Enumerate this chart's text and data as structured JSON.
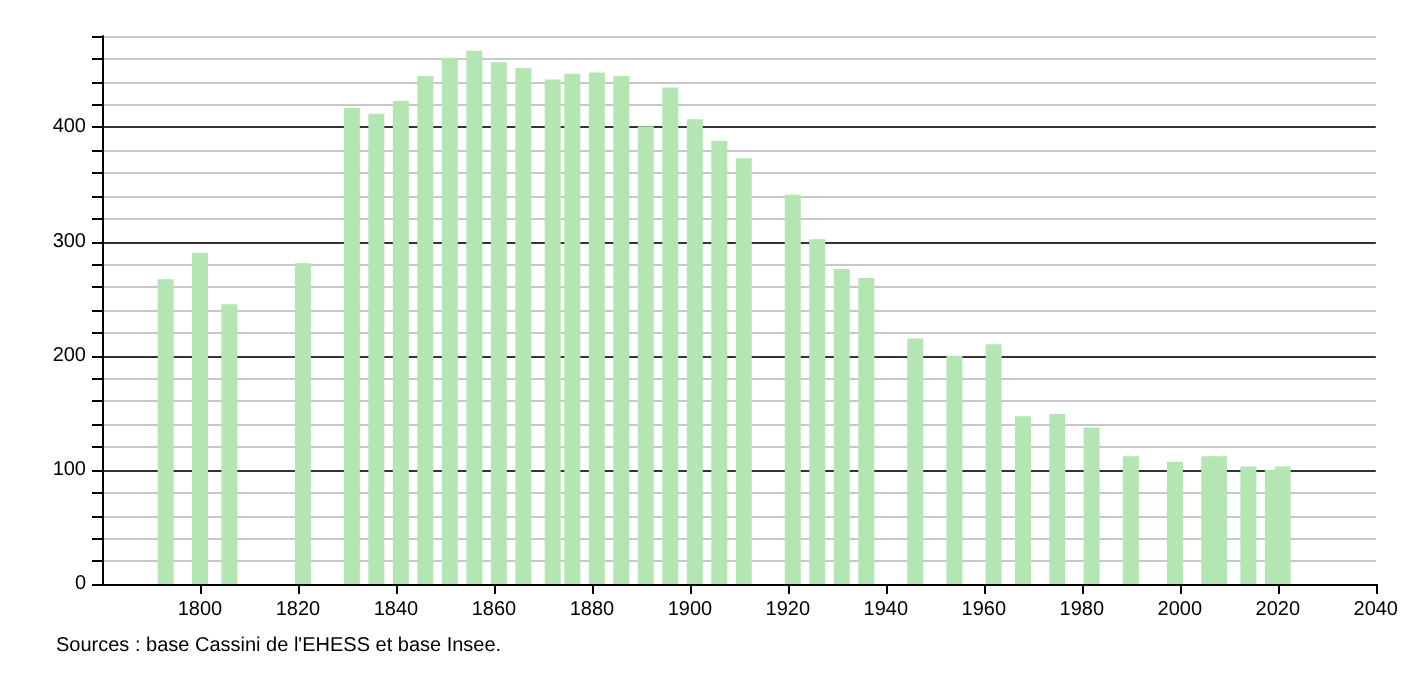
{
  "chart_data": {
    "type": "bar",
    "annotations": [
      "Sources : base Cassini de l'EHESS et base Insee."
    ],
    "x": [
      1793,
      1800,
      1806,
      1821,
      1831,
      1836,
      1841,
      1846,
      1851,
      1856,
      1861,
      1866,
      1872,
      1876,
      1881,
      1886,
      1891,
      1896,
      1901,
      1906,
      1911,
      1921,
      1926,
      1931,
      1936,
      1946,
      1954,
      1962,
      1968,
      1975,
      1982,
      1990,
      1999,
      2006,
      2008,
      2014,
      2019,
      2021
    ],
    "values": [
      267,
      290,
      245,
      281,
      417,
      412,
      423,
      445,
      461,
      467,
      457,
      452,
      442,
      447,
      448,
      445,
      401,
      435,
      407,
      388,
      373,
      341,
      302,
      276,
      268,
      215,
      200,
      210,
      147,
      149,
      137,
      112,
      107,
      112,
      112,
      103,
      100,
      103
    ],
    "color": "#b3e6b3",
    "xlim": [
      1780,
      2040
    ],
    "xticks": [
      1800,
      1820,
      1840,
      1860,
      1880,
      1900,
      1920,
      1940,
      1960,
      1980,
      2000,
      2020,
      2040
    ],
    "ylim": [
      0,
      480
    ],
    "yticks": [
      0,
      {
        "value": 20,
        "label": null
      },
      {
        "value": 40,
        "label": null
      },
      {
        "value": 60,
        "label": null
      },
      {
        "value": 80,
        "label": null
      },
      100,
      {
        "value": 120,
        "label": null
      },
      {
        "value": 140,
        "label": null
      },
      {
        "value": 160,
        "label": null
      },
      {
        "value": 180,
        "label": null
      },
      200,
      {
        "value": 220,
        "label": null
      },
      {
        "value": 240,
        "label": null
      },
      {
        "value": 260,
        "label": null
      },
      {
        "value": 280,
        "label": null
      },
      300,
      {
        "value": 320,
        "label": null
      },
      {
        "value": 340,
        "label": null
      },
      {
        "value": 360,
        "label": null
      },
      {
        "value": 380,
        "label": null
      },
      400,
      {
        "value": 420,
        "label": null
      },
      {
        "value": 440,
        "label": null
      },
      {
        "value": 460,
        "label": null
      },
      {
        "value": 480,
        "label": null
      }
    ],
    "grid": "y"
  }
}
